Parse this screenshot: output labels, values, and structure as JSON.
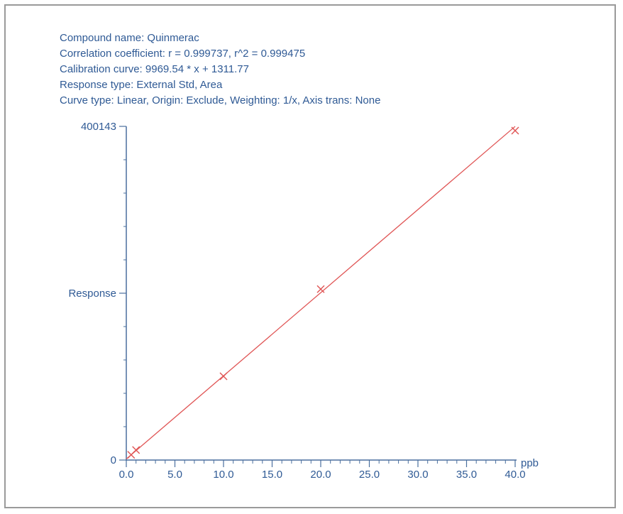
{
  "info": {
    "compound": "Compound name: Quinmerac",
    "correlation": "Correlation coefficient: r = 0.999737, r^2 = 0.999475",
    "calibration": "Calibration curve: 9969.54 * x + 1311.77",
    "response_type": "Response type: External Std, Area",
    "curve_type": "Curve type: Linear, Origin: Exclude, Weighting: 1/x, Axis trans: None"
  },
  "colors": {
    "text": "#2f5a95",
    "axis": "#4a6f9e",
    "line": "#e05555",
    "marker": "#e05555",
    "frame": "#9a9a9a"
  },
  "chart_data": {
    "type": "scatter",
    "xlabel": "ppb",
    "ylabel": "Response",
    "xlim": [
      0,
      40
    ],
    "ylim": [
      0,
      400143
    ],
    "x_ticks": [
      "0.0",
      "5.0",
      "10.0",
      "15.0",
      "20.0",
      "25.0",
      "30.0",
      "35.0",
      "40.0"
    ],
    "y_ticks": [
      "0",
      "400143"
    ],
    "points": [
      {
        "x": 0.5,
        "y": 6300
      },
      {
        "x": 1.0,
        "y": 12000
      },
      {
        "x": 10.0,
        "y": 100500
      },
      {
        "x": 20.0,
        "y": 205000
      },
      {
        "x": 40.0,
        "y": 395000
      }
    ],
    "fit": {
      "slope": 9969.54,
      "intercept": 1311.77,
      "x_range": [
        0.0,
        40.0
      ]
    }
  }
}
